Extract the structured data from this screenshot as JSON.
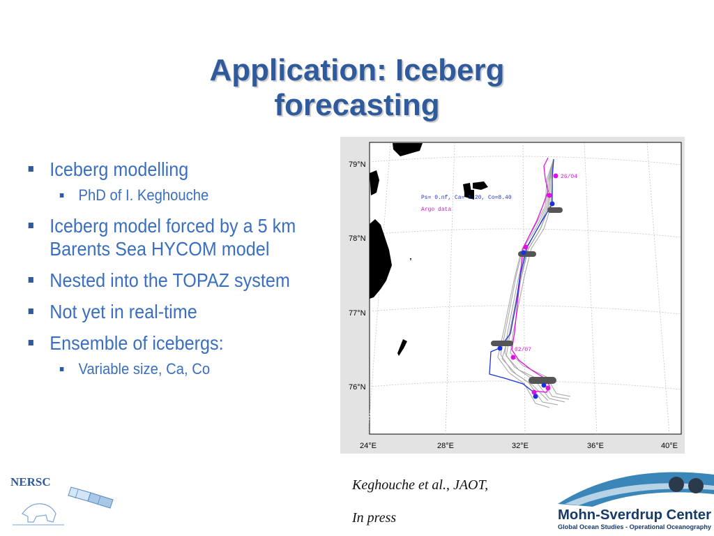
{
  "slide": {
    "title_line1": "Application: Iceberg",
    "title_line2": "forecasting"
  },
  "bullets": [
    {
      "text": "Iceberg modelling",
      "sub": [
        "PhD of I. Keghouche"
      ]
    },
    {
      "text": "Iceberg model forced by a 5 km Barents Sea HYCOM model",
      "sub": []
    },
    {
      "text": "Nested into the TOPAZ system",
      "sub": []
    },
    {
      "text": "Not yet in real-time",
      "sub": []
    },
    {
      "text": "Ensemble of icebergs:",
      "sub": [
        "Variable size, Ca, Co"
      ]
    }
  ],
  "map": {
    "lat_labels": [
      "79°N",
      "78°N",
      "77°N",
      "76°N"
    ],
    "lon_labels": [
      "24°E",
      "28°E",
      "32°E",
      "36°E",
      "40°E"
    ],
    "legend_line": "Ps= 0.nf, Ca= 1.20, Co=8.40",
    "legend_source": "Argo data",
    "date_start": "26/04",
    "date_mid": "02/07",
    "colors": {
      "ensemble": "#8c8c8c",
      "observed": "#e010e0",
      "model": "#1a32d8",
      "land": "#000000"
    }
  },
  "citation": {
    "line1": "Keghouche et al., JAOT,",
    "line2": "In press"
  },
  "logos": {
    "nersc": "NERSC",
    "msc_name": "Mohn-Sverdrup Center",
    "msc_sub": "Global Ocean Studies - Operational Oceanography"
  }
}
